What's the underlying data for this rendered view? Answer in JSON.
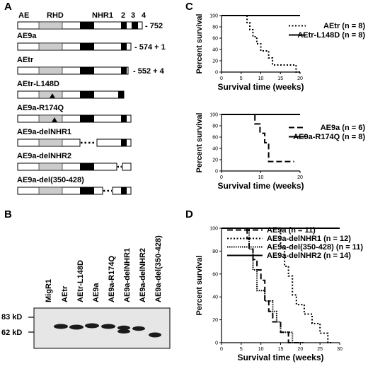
{
  "panels": {
    "A": "A",
    "B": "B",
    "C": "C",
    "D": "D"
  },
  "panel_a": {
    "domain_labels": [
      "AE",
      "RHD",
      "NHR1",
      "2",
      "3",
      "4"
    ],
    "constructs": [
      {
        "name": "AE9a",
        "suffix": "- 574 + 1"
      },
      {
        "name": "AEtr",
        "suffix": "- 552 + 4"
      },
      {
        "name": "AEtr-L148D",
        "suffix": ""
      },
      {
        "name": "AE9a-R174Q",
        "suffix": ""
      },
      {
        "name": "AE9a-delNHR1",
        "suffix": ""
      },
      {
        "name": "AE9a-delNHR2",
        "suffix": ""
      },
      {
        "name": "AE9a-del(350-428)",
        "suffix": ""
      }
    ],
    "full_length_suffix": "- 752"
  },
  "panel_b": {
    "lanes": [
      "MigR1",
      "AEtr",
      "AEtr-L148D",
      "AE9a",
      "AE9a-R174Q",
      "AE9a-delNHR1",
      "AE9a-delNHR2",
      "AE9a-del(350-428)"
    ],
    "markers": [
      "83 kD",
      "62 kD"
    ]
  },
  "chart_data": [
    {
      "type": "line",
      "panel": "C-top",
      "xlabel": "Survival time (weeks)",
      "ylabel": "Percent survival",
      "xlim": [
        0,
        20
      ],
      "ylim": [
        0,
        100
      ],
      "xticks": [
        "0",
        "5",
        "10",
        "15",
        "20"
      ],
      "yticks": [
        "0",
        "20",
        "40",
        "60",
        "80",
        "100"
      ],
      "series": [
        {
          "name": "AEtr (n = 8)",
          "style": "dotted",
          "x": [
            0,
            6.5,
            6.5,
            7.2,
            7.2,
            8,
            8,
            9,
            9,
            10,
            10,
            12,
            12,
            13,
            13,
            19,
            19,
            20
          ],
          "y": [
            100,
            100,
            87.5,
            87.5,
            75,
            75,
            62.5,
            62.5,
            50,
            50,
            37.5,
            37.5,
            25,
            25,
            12.5,
            12.5,
            0,
            0
          ]
        },
        {
          "name": "AEtr-L148D (n = 8)",
          "style": "solid",
          "x": [
            0,
            20
          ],
          "y": [
            100,
            100
          ]
        }
      ]
    },
    {
      "type": "line",
      "panel": "C-bottom",
      "xlabel": "Survival time (weeks)",
      "ylabel": "Percent survival",
      "xlim": [
        0,
        20
      ],
      "ylim": [
        0,
        100
      ],
      "xticks": [
        "0",
        "10",
        "20"
      ],
      "yticks": [
        "0",
        "20",
        "40",
        "60",
        "80",
        "100"
      ],
      "series": [
        {
          "name": "AE9a (n = 6)",
          "style": "dashed",
          "x": [
            0,
            8.5,
            8.5,
            9.8,
            9.8,
            11,
            11,
            12,
            12,
            18.5
          ],
          "y": [
            100,
            100,
            83.3,
            83.3,
            66.7,
            66.7,
            50,
            50,
            16.7,
            16.7
          ]
        },
        {
          "name": "AE9a-R174Q (n = 8)",
          "style": "solid",
          "x": [
            0,
            20
          ],
          "y": [
            100,
            100
          ]
        }
      ]
    },
    {
      "type": "line",
      "panel": "D",
      "xlabel": "Survival time (weeks)",
      "ylabel": "Percent survival",
      "xlim": [
        0,
        30
      ],
      "ylim": [
        0,
        100
      ],
      "xticks": [
        "0",
        "5",
        "10",
        "15",
        "20",
        "25",
        "30"
      ],
      "yticks": [
        "0",
        "20",
        "40",
        "60",
        "80",
        "100"
      ],
      "series": [
        {
          "name": "AE9a (n = 11)",
          "style": "dashed",
          "x": [
            0,
            6.5,
            6.5,
            7,
            7,
            8,
            8,
            9,
            9,
            10,
            10,
            11,
            11,
            12,
            12,
            13,
            13,
            15,
            15,
            17,
            17,
            20
          ],
          "y": [
            100,
            100,
            90.9,
            90.9,
            81.8,
            81.8,
            72.7,
            72.7,
            63.6,
            63.6,
            54.5,
            54.5,
            36.4,
            36.4,
            27.3,
            27.3,
            18.2,
            18.2,
            9.1,
            9.1,
            0,
            0
          ]
        },
        {
          "name": "AE9a-delNHR1 (n = 12)",
          "style": "dotted",
          "x": [
            0,
            15,
            15,
            16,
            16,
            17,
            17,
            18,
            18,
            19,
            19,
            21,
            21,
            23,
            23,
            25,
            25,
            27,
            27,
            28
          ],
          "y": [
            100,
            100,
            83.3,
            83.3,
            66.7,
            66.7,
            58.3,
            58.3,
            41.7,
            41.7,
            33.3,
            33.3,
            25,
            25,
            16.7,
            16.7,
            8.3,
            8.3,
            0,
            0
          ]
        },
        {
          "name": "AE9a-del(350-428) (n = 11)",
          "style": "dense-dotted",
          "x": [
            0,
            7,
            7,
            8,
            8,
            9,
            9,
            11,
            11,
            13,
            13,
            14,
            14,
            15,
            15,
            18,
            18,
            20,
            20,
            21
          ],
          "y": [
            100,
            100,
            81.8,
            81.8,
            63.6,
            63.6,
            45.5,
            45.5,
            36.4,
            36.4,
            27.3,
            27.3,
            18.2,
            18.2,
            9.1,
            9.1,
            0,
            0,
            0,
            0
          ]
        },
        {
          "name": "AE9a-delNHR2 (n = 14)",
          "style": "solid",
          "x": [
            0,
            30
          ],
          "y": [
            100,
            100
          ]
        }
      ]
    }
  ]
}
